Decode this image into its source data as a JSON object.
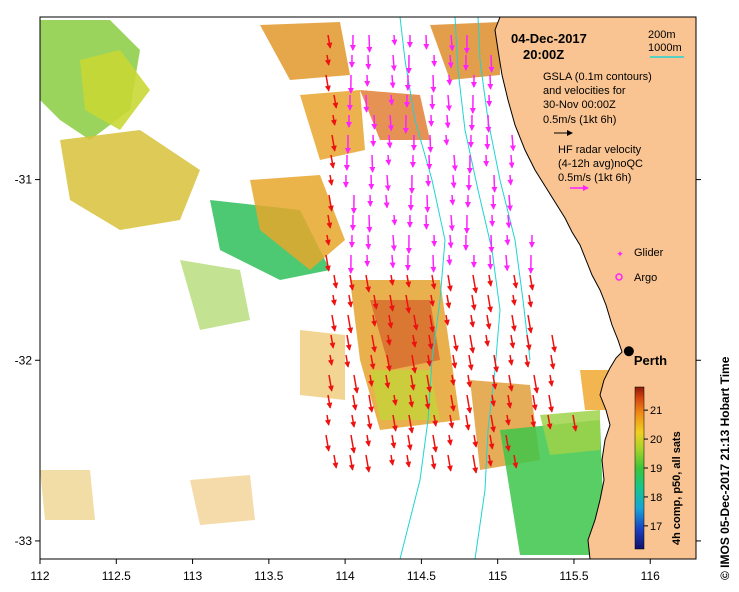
{
  "map": {
    "date": "04-Dec-2017",
    "time": "20:00Z",
    "longitude_range": [
      112.0,
      116.3
    ],
    "latitude_range": [
      -33.1,
      -30.1
    ],
    "x_ticks": [
      {
        "value": 112.0,
        "label": "112"
      },
      {
        "value": 112.5,
        "label": "112.5"
      },
      {
        "value": 113.0,
        "label": "113"
      },
      {
        "value": 113.5,
        "label": "113.5"
      },
      {
        "value": 114.0,
        "label": "114"
      },
      {
        "value": 114.5,
        "label": "114.5"
      },
      {
        "value": 115.0,
        "label": "115"
      },
      {
        "value": 115.5,
        "label": "115.5"
      },
      {
        "value": 116.0,
        "label": "116"
      }
    ],
    "y_ticks": [
      {
        "value": -31.0,
        "label": "-31"
      },
      {
        "value": -32.0,
        "label": "-32"
      },
      {
        "value": -33.0,
        "label": "-33"
      }
    ],
    "city": {
      "name": "Perth",
      "lon": 115.86,
      "lat": -31.95
    },
    "isobath_legend": {
      "line1": "200m",
      "line2": "1000m"
    },
    "gsla_legend": {
      "line1": "GSLA (0.1m contours)",
      "line2": "and velocities for",
      "line3": "30-Nov 00:00Z",
      "scale": "0.5m/s (1kt 6h)"
    },
    "hf_legend": {
      "line1": "HF radar velocity",
      "line2": "(4-12h avg)noQC",
      "scale": "0.5m/s (1kt 6h)"
    },
    "markers": {
      "glider": "Glider",
      "argo": "Argo"
    },
    "colorbar": {
      "label": "4h comp, p50, all sats",
      "ticks": [
        "17",
        "18",
        "19",
        "20",
        "21"
      ],
      "min": 16.2,
      "max": 21.8
    },
    "credit": "© IMOS 05-Dec-2017 21:13 Hobart Time",
    "colors": {
      "land": "#f9c491",
      "isobath": "#1fd4d4",
      "hf_vector_offshore": "#ff22ff",
      "hf_vector_shelf": "#ee1111",
      "legend_hf_arrow": "#ff22ff"
    }
  }
}
